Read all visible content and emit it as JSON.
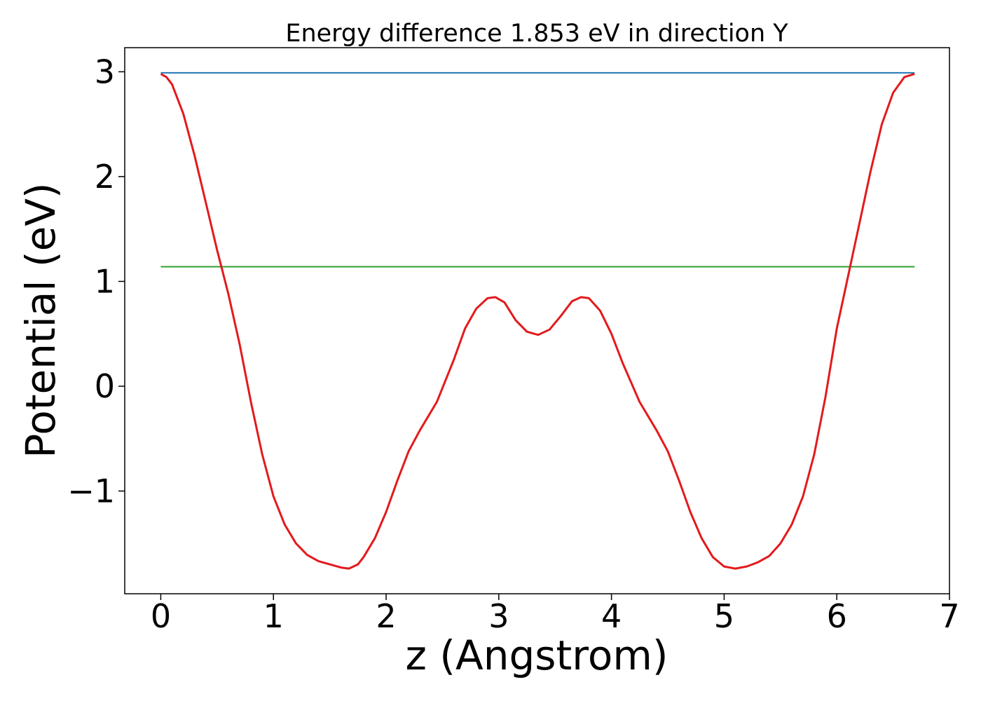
{
  "chart_data": {
    "type": "line",
    "title": "Energy difference 1.853 eV in direction Y",
    "xlabel": "z (Angstrom)",
    "ylabel": "Potential (eV)",
    "xlim": [
      -0.32,
      7.0
    ],
    "ylim": [
      -1.98,
      3.23
    ],
    "xticks": [
      0,
      1,
      2,
      3,
      4,
      5,
      6,
      7
    ],
    "xtick_labels": [
      "0",
      "1",
      "2",
      "3",
      "4",
      "5",
      "6",
      "7"
    ],
    "yticks": [
      -1,
      0,
      1,
      2,
      3
    ],
    "ytick_labels": [
      "−1",
      "0",
      "1",
      "2",
      "3"
    ],
    "grid": false,
    "series": [
      {
        "color": "#1f77b4",
        "x": [
          0,
          6.69
        ],
        "y": [
          2.99,
          2.99
        ]
      },
      {
        "color": "#2ca02c",
        "x": [
          0,
          6.69
        ],
        "y": [
          1.14,
          1.14
        ]
      },
      {
        "color": "#e31a1c",
        "x": [
          0,
          0.05,
          0.1,
          0.2,
          0.3,
          0.4,
          0.5,
          0.6,
          0.7,
          0.8,
          0.9,
          1.0,
          1.1,
          1.2,
          1.3,
          1.4,
          1.5,
          1.6,
          1.67,
          1.75,
          1.8,
          1.9,
          2.0,
          2.1,
          2.2,
          2.3,
          2.45,
          2.6,
          2.7,
          2.8,
          2.9,
          2.97,
          3.05,
          3.15,
          3.25,
          3.35,
          3.45,
          3.55,
          3.65,
          3.73,
          3.8,
          3.9,
          4.0,
          4.1,
          4.25,
          4.4,
          4.5,
          4.6,
          4.7,
          4.8,
          4.9,
          5.0,
          5.1,
          5.2,
          5.3,
          5.4,
          5.5,
          5.6,
          5.7,
          5.8,
          5.9,
          6.0,
          6.1,
          6.2,
          6.3,
          6.4,
          6.5,
          6.6,
          6.69
        ],
        "y": [
          2.98,
          2.95,
          2.88,
          2.6,
          2.2,
          1.75,
          1.3,
          0.88,
          0.4,
          -0.15,
          -0.65,
          -1.05,
          -1.32,
          -1.5,
          -1.61,
          -1.67,
          -1.7,
          -1.73,
          -1.74,
          -1.7,
          -1.63,
          -1.45,
          -1.2,
          -0.9,
          -0.62,
          -0.42,
          -0.15,
          0.25,
          0.55,
          0.74,
          0.84,
          0.85,
          0.8,
          0.63,
          0.52,
          0.49,
          0.54,
          0.67,
          0.81,
          0.85,
          0.84,
          0.72,
          0.5,
          0.22,
          -0.15,
          -0.42,
          -0.62,
          -0.9,
          -1.2,
          -1.45,
          -1.63,
          -1.72,
          -1.74,
          -1.72,
          -1.68,
          -1.62,
          -1.5,
          -1.32,
          -1.05,
          -0.65,
          -0.1,
          0.55,
          1.05,
          1.55,
          2.05,
          2.5,
          2.8,
          2.95,
          2.98
        ]
      }
    ]
  }
}
